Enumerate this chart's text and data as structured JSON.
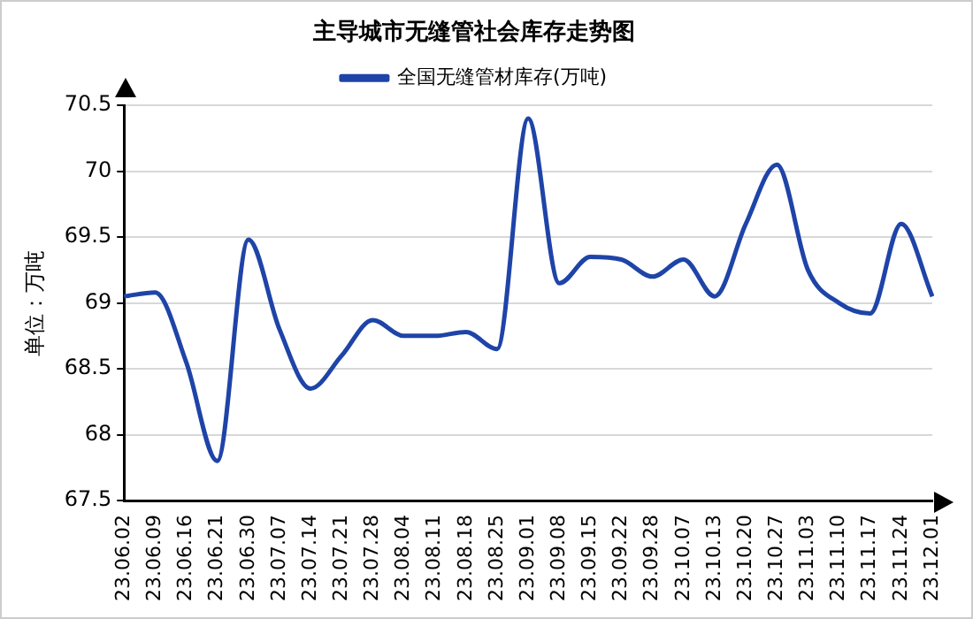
{
  "chart_data": {
    "type": "line",
    "title": "主导城市无缝管社会库存走势图",
    "ylabel": "单位：万吨",
    "categories": [
      "23.06.02",
      "23.06.09",
      "23.06.16",
      "23.06.21",
      "23.06.30",
      "23.07.07",
      "23.07.14",
      "23.07.21",
      "23.07.28",
      "23.08.04",
      "23.08.11",
      "23.08.18",
      "23.08.25",
      "23.09.01",
      "23.09.08",
      "23.09.15",
      "23.09.22",
      "23.09.28",
      "23.10.07",
      "23.10.13",
      "23.10.20",
      "23.10.27",
      "23.11.03",
      "23.11.10",
      "23.11.17",
      "23.11.24",
      "23.12.01"
    ],
    "series": [
      {
        "name": "全国无缝管材库存(万吨)",
        "color": "#1f44a8",
        "values": [
          69.05,
          69.08,
          68.55,
          67.8,
          69.48,
          68.8,
          68.35,
          68.6,
          68.87,
          68.75,
          68.75,
          68.78,
          68.65,
          70.4,
          69.15,
          69.35,
          69.33,
          69.2,
          69.33,
          69.05,
          69.6,
          70.05,
          69.25,
          69.0,
          68.92,
          69.6,
          69.05
        ]
      }
    ],
    "ylim": [
      67.5,
      70.5
    ],
    "yticks": [
      67.5,
      68,
      68.5,
      69,
      69.5,
      70,
      70.5
    ],
    "grid": "y",
    "legend": "top",
    "marker": "none",
    "line_style": "solid"
  }
}
